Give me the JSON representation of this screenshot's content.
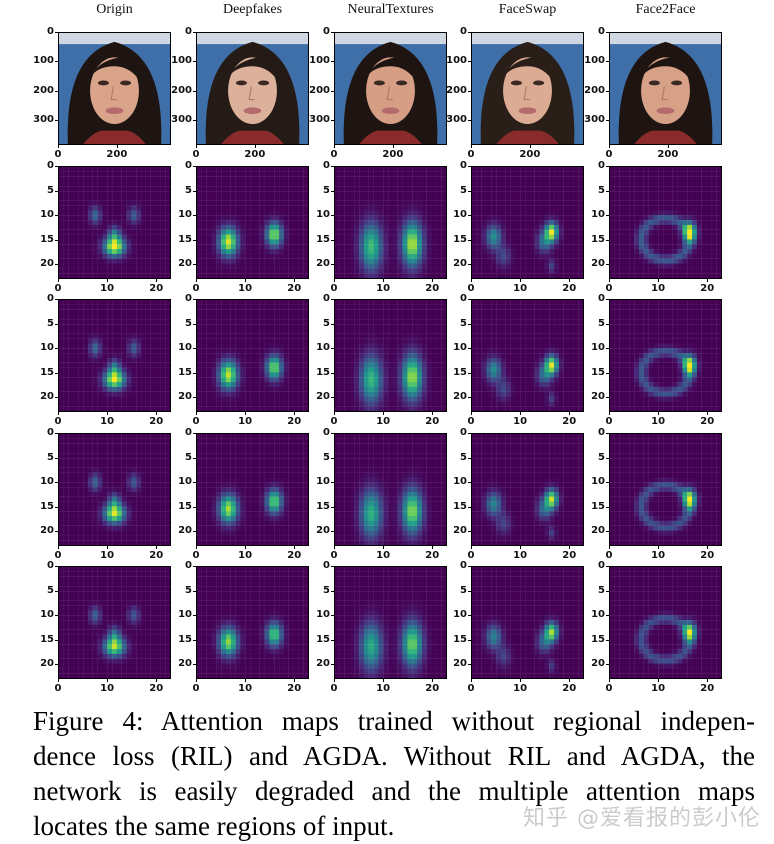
{
  "figure": {
    "columns": [
      "Origin",
      "Deepfakes",
      "NeuralTextures",
      "FaceSwap",
      "Face2Face"
    ],
    "image_row": {
      "y_ticks": [
        "0",
        "100",
        "200",
        "300"
      ],
      "x_ticks": [
        "0",
        "200"
      ],
      "y_range": [
        0,
        384
      ],
      "x_range": [
        0,
        384
      ]
    },
    "attention_rows": {
      "count": 4,
      "grid_size": 23,
      "y_ticks": [
        "0",
        "5",
        "10",
        "15",
        "20"
      ],
      "x_ticks": [
        "0",
        "10",
        "20"
      ],
      "colormap": "viridis"
    },
    "attention_features": {
      "Origin": [
        {
          "col": 7,
          "row": 9.5,
          "intensity": 0.35,
          "spread": 0.8
        },
        {
          "col": 15,
          "row": 9.5,
          "intensity": 0.3,
          "spread": 0.8
        },
        {
          "col": 11,
          "row": 13.5,
          "intensity": 0.38,
          "spread": 0.8
        },
        {
          "col": 11,
          "row": 16,
          "intensity": 1.0,
          "spread": 0.9
        }
      ],
      "Deepfakes": [
        {
          "col": 6,
          "row": 15,
          "intensity": 0.95,
          "spread": 1.3
        },
        {
          "col": 15.5,
          "row": 13.5,
          "intensity": 0.85,
          "spread": 1.1
        }
      ],
      "NeuralTextures": [
        {
          "col": 7,
          "row": 16,
          "intensity": 0.7,
          "spread": 1.5
        },
        {
          "col": 15.5,
          "row": 15.5,
          "intensity": 0.9,
          "spread": 1.4
        }
      ],
      "FaceSwap": [
        {
          "col": 4,
          "row": 14,
          "intensity": 0.5,
          "spread": 1.1
        },
        {
          "col": 6,
          "row": 18,
          "intensity": 0.22,
          "spread": 1.0
        },
        {
          "col": 16,
          "row": 13,
          "intensity": 0.95,
          "spread": 0.9
        },
        {
          "col": 14.5,
          "row": 15,
          "intensity": 0.4,
          "spread": 1.0
        },
        {
          "col": 16,
          "row": 20,
          "intensity": 0.2,
          "spread": 0.6
        }
      ],
      "Face2Face": [
        {
          "ring_center": [
            11,
            14.5
          ],
          "radius": 5,
          "intensity": 0.28
        },
        {
          "col": 16,
          "row": 13,
          "intensity": 0.9,
          "spread": 0.9
        }
      ]
    }
  },
  "caption": {
    "lines": [
      "Figure 4: Attention maps trained without regional indepen-",
      "dence loss (RIL) and AGDA. Without RIL and AGDA, the",
      "network is easily degraded and the multiple attention maps",
      "locates the same regions of input."
    ]
  },
  "watermark": "知乎 @爱看报的彭小伦"
}
